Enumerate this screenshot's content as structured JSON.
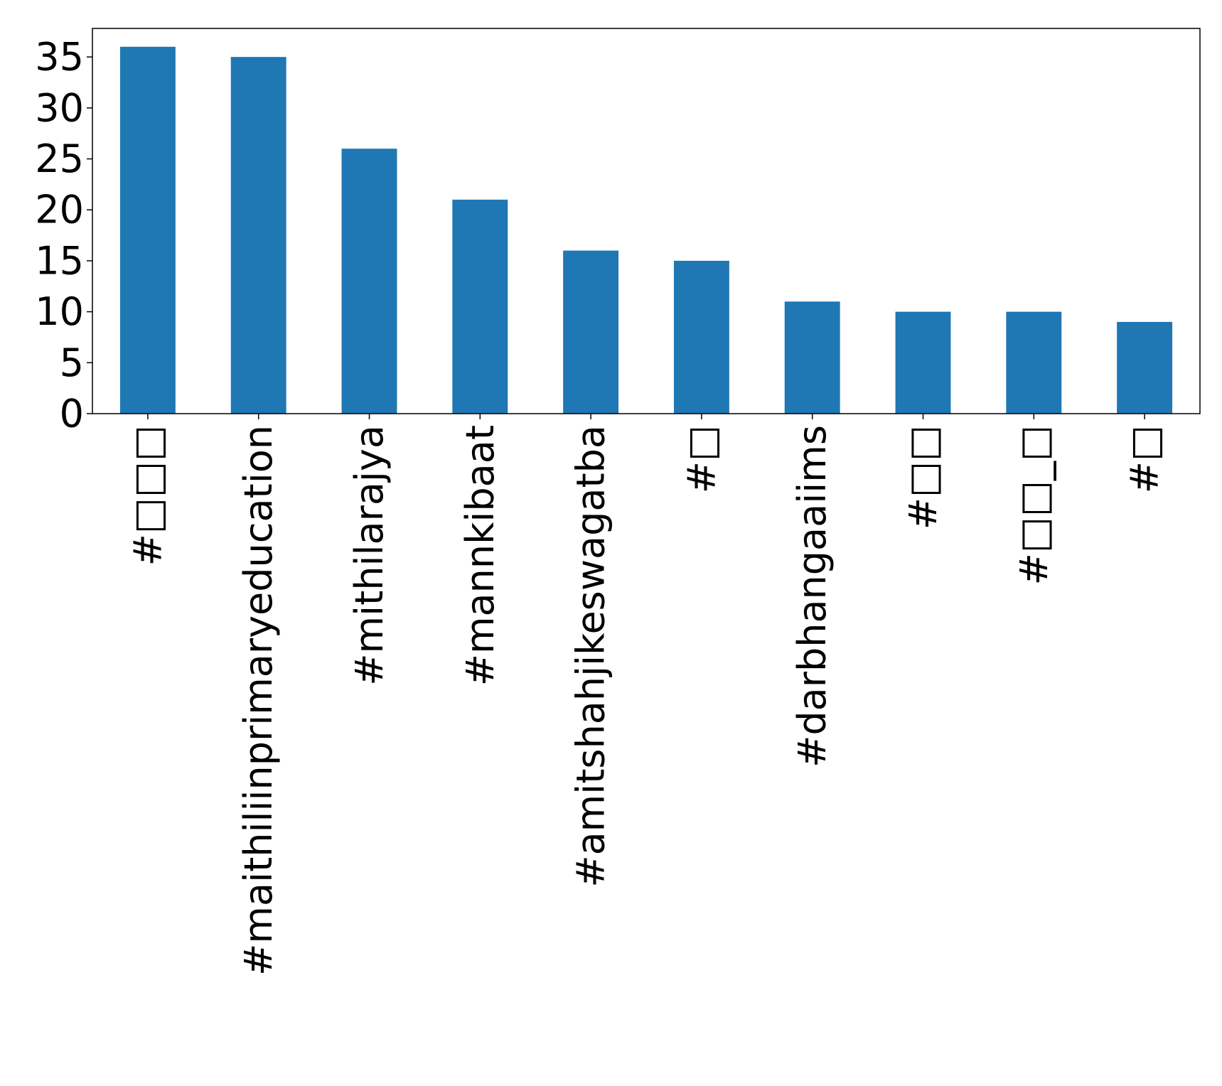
{
  "chart_data": {
    "type": "bar",
    "title": "",
    "xlabel": "",
    "ylabel": "",
    "categories": [
      "#□□□",
      "#maithiliinprimaryeducation",
      "#mithilarajya",
      "#mannkibaat",
      "#amitshahjikeswagatba",
      "#□",
      "#darbhangaaiims",
      "#□□",
      "#□□_□",
      "#□"
    ],
    "values": [
      36,
      35,
      26,
      21,
      16,
      15,
      11,
      10,
      10,
      9
    ],
    "ylim": [
      0,
      37.8
    ],
    "yticks": [
      0,
      5,
      10,
      15,
      20,
      25,
      30,
      35
    ],
    "ytick_labels": [
      "0",
      "5",
      "10",
      "15",
      "20",
      "25",
      "30",
      "35"
    ],
    "grid": false,
    "legend": "none",
    "colors": {
      "bar": "#1f77b4",
      "axes": "#000000"
    }
  }
}
